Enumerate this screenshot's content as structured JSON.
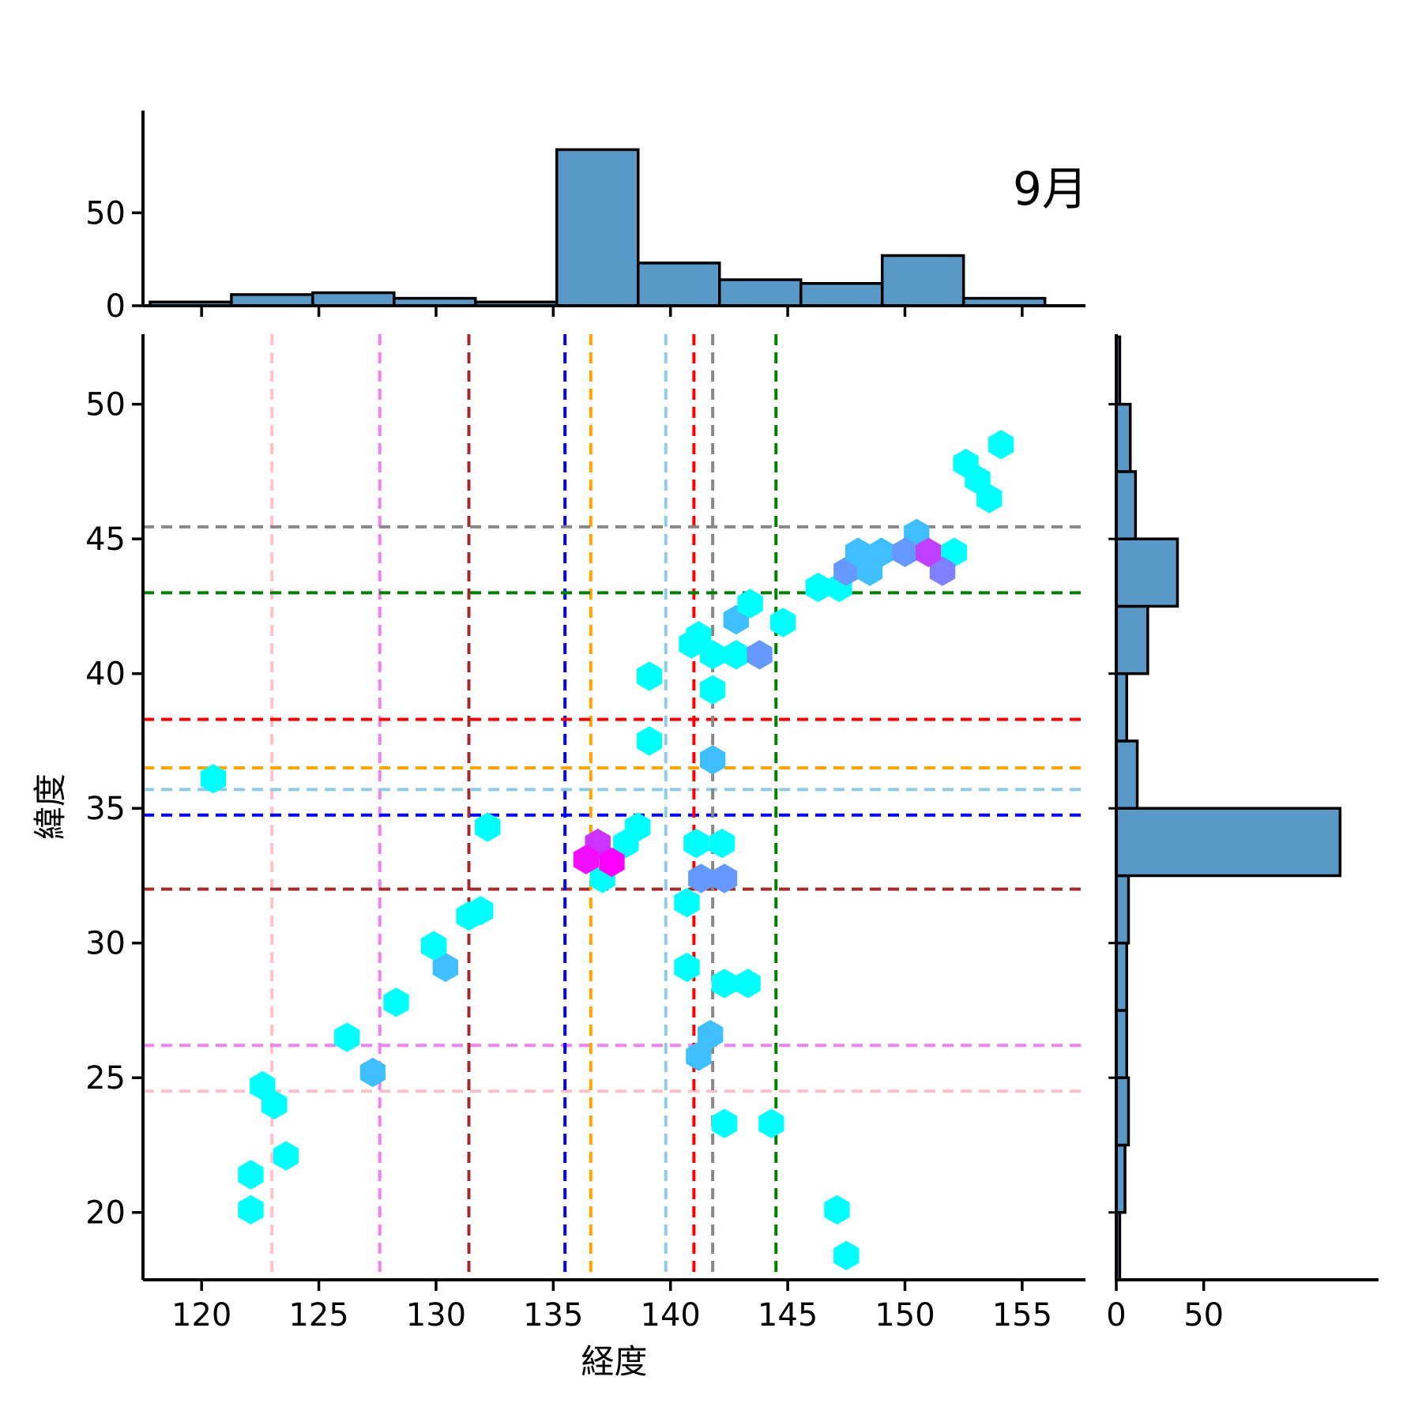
{
  "chart_data": {
    "type": "hexbin",
    "title": "9月",
    "xlabel": "経度",
    "ylabel": "緯度",
    "legend": "none",
    "grid": "off",
    "main": {
      "xlim": [
        117.5,
        157.7
      ],
      "ylim": [
        17.5,
        52.6
      ],
      "xticks": [
        120,
        125,
        130,
        135,
        140,
        145,
        150,
        155
      ],
      "yticks": [
        20,
        25,
        30,
        35,
        40,
        45,
        50
      ],
      "hex_width_deg": 1.05,
      "colormap": "cool (cyan=low count, magenta=high count)",
      "crosshairs": [
        {
          "name": "pink",
          "color": "#FFC0CB",
          "x": 123.0,
          "y": 24.5
        },
        {
          "name": "violet",
          "color": "#EE82EE",
          "x": 127.6,
          "y": 26.2
        },
        {
          "name": "darkred",
          "color": "#A52A2A",
          "x": 131.4,
          "y": 32.0
        },
        {
          "name": "blue",
          "color": "#0000FF",
          "x": 135.5,
          "y": 34.75
        },
        {
          "name": "orange",
          "color": "#FFA500",
          "x": 136.6,
          "y": 36.5
        },
        {
          "name": "skyblue",
          "color": "#8FCBE8",
          "x": 139.8,
          "y": 35.7
        },
        {
          "name": "red",
          "color": "#FF0000",
          "x": 141.0,
          "y": 38.3
        },
        {
          "name": "gray",
          "color": "#888888",
          "x": 141.8,
          "y": 45.45
        },
        {
          "name": "green",
          "color": "#008000",
          "x": 144.5,
          "y": 43.0
        }
      ],
      "hexes": [
        {
          "x": 122.1,
          "y": 20.1,
          "c": "#00FFFF"
        },
        {
          "x": 122.1,
          "y": 21.4,
          "c": "#00FFFF"
        },
        {
          "x": 123.6,
          "y": 22.1,
          "c": "#00FFFF"
        },
        {
          "x": 123.1,
          "y": 24.0,
          "c": "#00FFFF"
        },
        {
          "x": 122.6,
          "y": 24.7,
          "c": "#00FFFF"
        },
        {
          "x": 127.3,
          "y": 25.2,
          "c": "#40BFFF"
        },
        {
          "x": 126.2,
          "y": 26.5,
          "c": "#00FFFF"
        },
        {
          "x": 128.3,
          "y": 27.8,
          "c": "#00FFFF"
        },
        {
          "x": 130.4,
          "y": 29.1,
          "c": "#40BFFF"
        },
        {
          "x": 129.9,
          "y": 29.9,
          "c": "#00FFFF"
        },
        {
          "x": 131.4,
          "y": 31.0,
          "c": "#00FFFF"
        },
        {
          "x": 131.9,
          "y": 31.2,
          "c": "#00FFFF"
        },
        {
          "x": 120.5,
          "y": 36.1,
          "c": "#00FFFF"
        },
        {
          "x": 132.2,
          "y": 34.3,
          "c": "#00FFFF"
        },
        {
          "x": 147.5,
          "y": 18.4,
          "c": "#00FFFF"
        },
        {
          "x": 147.1,
          "y": 20.1,
          "c": "#00FFFF"
        },
        {
          "x": 142.3,
          "y": 23.3,
          "c": "#00FFFF"
        },
        {
          "x": 144.3,
          "y": 23.3,
          "c": "#00FFFF"
        },
        {
          "x": 141.2,
          "y": 25.8,
          "c": "#40BFFF"
        },
        {
          "x": 141.7,
          "y": 26.6,
          "c": "#40BFFF"
        },
        {
          "x": 140.7,
          "y": 29.1,
          "c": "#00FFFF"
        },
        {
          "x": 142.3,
          "y": 28.5,
          "c": "#00FFFF"
        },
        {
          "x": 143.3,
          "y": 28.5,
          "c": "#00FFFF"
        },
        {
          "x": 140.7,
          "y": 31.5,
          "c": "#00FFFF"
        },
        {
          "x": 137.1,
          "y": 32.4,
          "c": "#00FFFF"
        },
        {
          "x": 138.6,
          "y": 34.3,
          "c": "#00FFFF"
        },
        {
          "x": 138.1,
          "y": 33.7,
          "c": "#00FFFF"
        },
        {
          "x": 136.9,
          "y": 33.7,
          "c": "#CC33FF"
        },
        {
          "x": 136.4,
          "y": 33.1,
          "c": "#F20DFF"
        },
        {
          "x": 137.5,
          "y": 33.0,
          "c": "#FF00FF"
        },
        {
          "x": 141.1,
          "y": 33.7,
          "c": "#00FFFF"
        },
        {
          "x": 142.2,
          "y": 33.7,
          "c": "#00FFFF"
        },
        {
          "x": 141.3,
          "y": 32.4,
          "c": "#6699FF"
        },
        {
          "x": 142.3,
          "y": 32.4,
          "c": "#6699FF"
        },
        {
          "x": 141.8,
          "y": 36.8,
          "c": "#40BFFF"
        },
        {
          "x": 139.1,
          "y": 37.5,
          "c": "#00FFFF"
        },
        {
          "x": 139.1,
          "y": 39.9,
          "c": "#00FFFF"
        },
        {
          "x": 141.8,
          "y": 39.4,
          "c": "#00FFFF"
        },
        {
          "x": 140.9,
          "y": 41.1,
          "c": "#00FFFF"
        },
        {
          "x": 141.2,
          "y": 41.4,
          "c": "#00FFFF"
        },
        {
          "x": 141.8,
          "y": 40.7,
          "c": "#00FFFF"
        },
        {
          "x": 142.8,
          "y": 40.7,
          "c": "#00FFFF"
        },
        {
          "x": 143.8,
          "y": 40.7,
          "c": "#6699FF"
        },
        {
          "x": 142.8,
          "y": 42.0,
          "c": "#40BFFF"
        },
        {
          "x": 143.4,
          "y": 42.6,
          "c": "#00FFFF"
        },
        {
          "x": 144.8,
          "y": 41.9,
          "c": "#00FFFF"
        },
        {
          "x": 146.3,
          "y": 43.2,
          "c": "#00FFFF"
        },
        {
          "x": 147.2,
          "y": 43.2,
          "c": "#00FFFF"
        },
        {
          "x": 147.5,
          "y": 43.8,
          "c": "#6699FF"
        },
        {
          "x": 148.5,
          "y": 43.8,
          "c": "#40BFFF"
        },
        {
          "x": 150.5,
          "y": 45.2,
          "c": "#40BFFF"
        },
        {
          "x": 148.0,
          "y": 44.5,
          "c": "#40BFFF"
        },
        {
          "x": 149.0,
          "y": 44.5,
          "c": "#40BFFF"
        },
        {
          "x": 150.0,
          "y": 44.5,
          "c": "#6699FF"
        },
        {
          "x": 152.1,
          "y": 44.5,
          "c": "#00FFFF"
        },
        {
          "x": 151.6,
          "y": 43.8,
          "c": "#7F80FF"
        },
        {
          "x": 151.0,
          "y": 44.5,
          "c": "#BF40FF"
        },
        {
          "x": 152.6,
          "y": 47.8,
          "c": "#00FFFF"
        },
        {
          "x": 153.1,
          "y": 47.2,
          "c": "#00FFFF"
        },
        {
          "x": 153.6,
          "y": 46.5,
          "c": "#00FFFF"
        },
        {
          "x": 154.1,
          "y": 48.5,
          "c": "#00FFFF"
        }
      ]
    },
    "top_hist": {
      "bin_edges": [
        117.8,
        121.27,
        124.74,
        128.21,
        131.68,
        135.15,
        138.62,
        142.09,
        145.56,
        149.03,
        152.5,
        155.97
      ],
      "values": [
        2,
        6,
        7,
        4,
        2,
        84,
        23,
        14,
        12,
        27,
        4
      ],
      "ylim": [
        0,
        105
      ],
      "yticks": [
        0,
        50
      ],
      "fill": "#5A99C7",
      "edge": "#000000"
    },
    "right_hist": {
      "bin_edges": [
        17.5,
        20,
        22.5,
        25,
        27.5,
        30,
        32.5,
        35,
        37.5,
        40,
        42.5,
        45,
        47.5,
        50,
        52.5
      ],
      "values": [
        2,
        5,
        7,
        6,
        6,
        7,
        128,
        12,
        6,
        18,
        35,
        11,
        8,
        2
      ],
      "xlim": [
        0,
        150
      ],
      "xticks": [
        0,
        50
      ],
      "fill": "#5A99C7",
      "edge": "#000000"
    }
  }
}
